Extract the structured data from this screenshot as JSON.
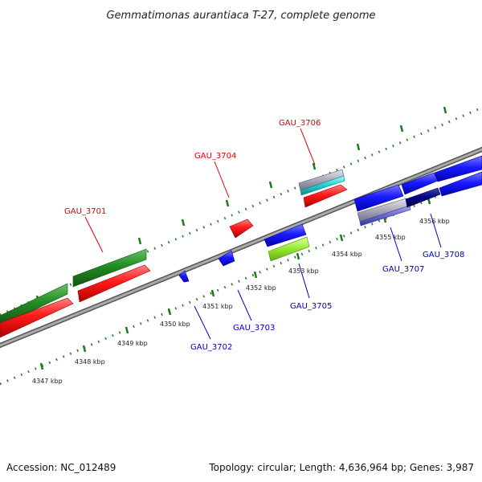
{
  "title": "Gemmatimonas aurantiaca T-27, complete genome",
  "footer": {
    "accession": "Accession: NC_012489",
    "stats": "Topology: circular; Length: 4,636,964 bp; Genes: 3,987"
  },
  "colors": {
    "backbone": "#8a8a8a",
    "ticks": "#1f7a1f",
    "label_top": "#dd0000",
    "label_bottom": "#0000bb",
    "red": "#ff1a1a",
    "green": "#228b22",
    "blue": "#1a1aff",
    "lime": "#99ee33",
    "gray": "#a8a8bb",
    "cyan": "#22cccc",
    "violet": "#6666cc",
    "navy": "#000088"
  },
  "kbp_ticks": [
    "4347 kbp",
    "4348 kbp",
    "4349 kbp",
    "4350 kbp",
    "4351 kbp",
    "4352 kbp",
    "4353 kbp",
    "4354 kbp",
    "4355 kbp",
    "4356 kbp"
  ],
  "gene_labels_top": [
    "GAU_3701",
    "GAU_3704",
    "GAU_3706"
  ],
  "gene_labels_bottom": [
    "GAU_3702",
    "GAU_3703",
    "GAU_3705",
    "GAU_3707",
    "GAU_3708"
  ]
}
